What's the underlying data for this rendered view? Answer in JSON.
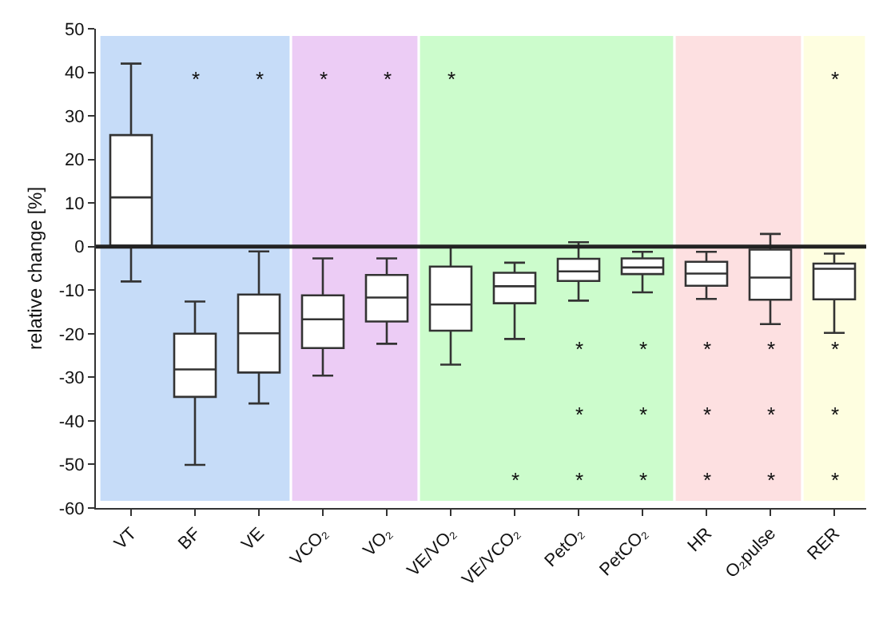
{
  "chart_data": {
    "type": "box",
    "ylabel": "relative change [%]",
    "categories": [
      "VT",
      "BF",
      "VE",
      "VCO₂",
      "VO₂",
      "VE/VO₂",
      "VE/VCO₂",
      "PetO₂",
      "PetCO₂",
      "HR",
      "O₂pulse",
      "RER"
    ],
    "boxes": [
      {
        "low": -8,
        "q1": 0.2,
        "median": 11.3,
        "q3": 25.6,
        "high": 42
      },
      {
        "low": -50.1,
        "q1": -34.5,
        "median": -28.2,
        "q3": -20,
        "high": -12.6
      },
      {
        "low": -36,
        "q1": -28.9,
        "median": -19.9,
        "q3": -11,
        "high": -1.1
      },
      {
        "low": -29.6,
        "q1": -23.3,
        "median": -16.7,
        "q3": -11.2,
        "high": -2.7
      },
      {
        "low": -22.3,
        "q1": -17.2,
        "median": -11.7,
        "q3": -6.5,
        "high": -2.7
      },
      {
        "low": -27.1,
        "q1": -19.3,
        "median": -13.3,
        "q3": -4.6,
        "high": 0
      },
      {
        "low": -21.2,
        "q1": -13,
        "median": -9.1,
        "q3": -6,
        "high": -3.7
      },
      {
        "low": -12.4,
        "q1": -7.9,
        "median": -5.7,
        "q3": -2.8,
        "high": 1
      },
      {
        "low": -10.5,
        "q1": -6.3,
        "median": -4.8,
        "q3": -2.7,
        "high": -1.2
      },
      {
        "low": -12,
        "q1": -9,
        "median": -6.2,
        "q3": -3.5,
        "high": -1.2
      },
      {
        "low": -17.8,
        "q1": -12.2,
        "median": -7.1,
        "q3": -0.7,
        "high": 2.9
      },
      {
        "low": -19.8,
        "q1": -12.1,
        "median": -5.1,
        "q3": -3.9,
        "high": -1.6
      }
    ],
    "color": "#333333",
    "ylim": [
      -60,
      50
    ],
    "yticks": [
      -60,
      -50,
      -40,
      -30,
      -20,
      -10,
      0,
      10,
      20,
      30,
      40,
      50
    ],
    "grid": false,
    "ref_lines": [
      {
        "axis": "y",
        "value": 0,
        "color": "#222222"
      }
    ],
    "bands": [
      {
        "axis": "x",
        "from": "VT",
        "to": "VE",
        "color": "#c6dcf8"
      },
      {
        "axis": "x",
        "from": "VCO₂",
        "to": "VO₂",
        "color": "#ecccf5"
      },
      {
        "axis": "x",
        "from": "VE/VO₂",
        "to": "PetCO₂",
        "color": "#ccfccc"
      },
      {
        "axis": "x",
        "from": "HR",
        "to": "O₂pulse",
        "color": "#fde0e1"
      },
      {
        "axis": "x",
        "from": "RER",
        "to": "RER",
        "color": "#fefee0"
      }
    ],
    "annotations": [
      "*",
      "*",
      "*",
      "*",
      "*",
      "*",
      "*",
      "*",
      "*",
      "*",
      "*",
      "*",
      "*",
      "*",
      "*",
      "*",
      "*",
      "*",
      "*",
      "*",
      "*",
      "*"
    ]
  }
}
